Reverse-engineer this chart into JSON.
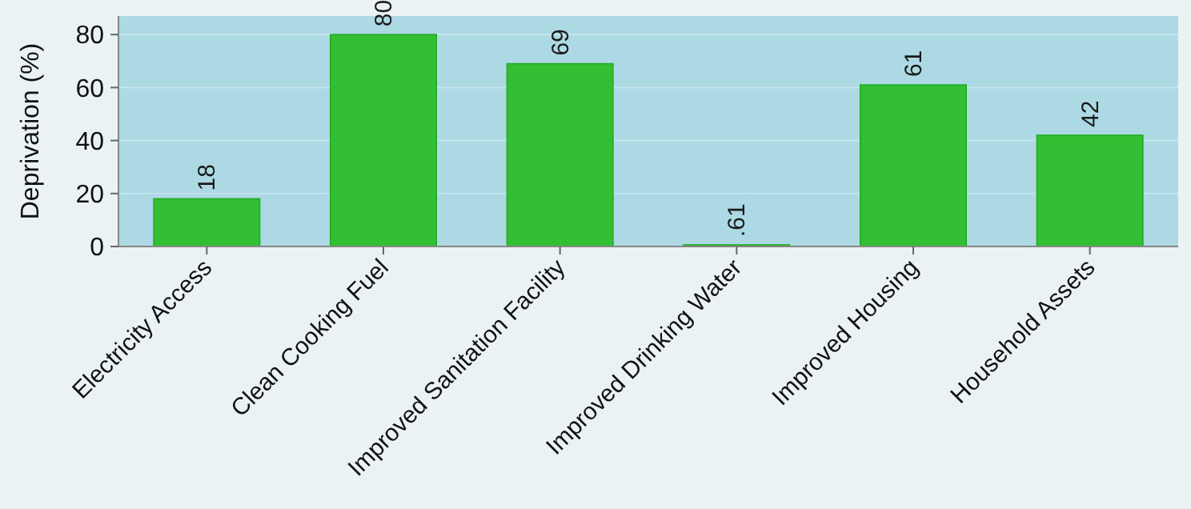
{
  "chart_data": {
    "type": "bar",
    "ylabel": "Deprivation (%)",
    "categories": [
      "Electricity Access",
      "Clean Cooking Fuel",
      "Improved Sanitation Facility",
      "Improved Drinking Water",
      "Improved Housing",
      "Household Assets"
    ],
    "values": [
      18,
      80,
      69,
      0.61,
      61,
      42
    ],
    "value_labels": [
      "18",
      "80",
      "69",
      ".61",
      "61",
      "42"
    ],
    "color": "#33bf33",
    "ylim": [
      0,
      87
    ],
    "yticks": [
      0,
      20,
      40,
      60,
      80
    ],
    "grid": "y"
  }
}
